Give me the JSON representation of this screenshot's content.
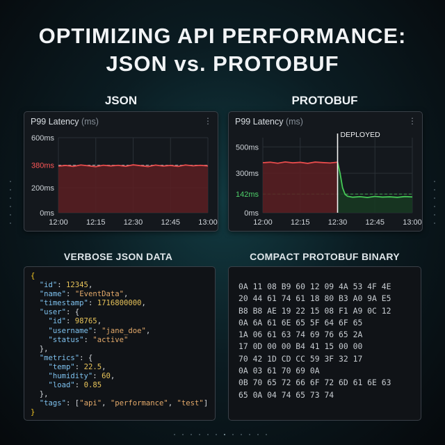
{
  "title_line1": "OPTIMIZING API PERFORMANCE:",
  "title_line2": "JSON vs. PROTOBUF",
  "left_heading": "JSON",
  "right_heading": "PROTOBUF",
  "code_heading_left": "VERBOSE JSON DATA",
  "code_heading_right": "COMPACT PROTOBUF BINARY",
  "colors": {
    "json_series": "#e84c4c",
    "protobuf_after": "#46c957",
    "accent_label_red": "#ff5757",
    "accent_label_green": "#4fd06a"
  },
  "chart_data": [
    {
      "type": "line",
      "title": "P99 Latency",
      "unit": "(ms)",
      "menu_icon": "kebab-menu-icon",
      "x_ticks": [
        "12:00",
        "12:15",
        "12:30",
        "12:45",
        "13:00"
      ],
      "y_ticks": [
        "600ms",
        "380ms",
        "200ms",
        "0ms"
      ],
      "ylim": [
        0,
        600
      ],
      "xlim": [
        0,
        60
      ],
      "reference_line": {
        "value": 380,
        "label": "380ms"
      },
      "grid": true,
      "series": [
        {
          "x": [
            0,
            3,
            6,
            9,
            12,
            15,
            18,
            21,
            24,
            27,
            30,
            33,
            36,
            39,
            42,
            45,
            48,
            51,
            54,
            57,
            60
          ],
          "y": [
            372,
            378,
            370,
            382,
            375,
            368,
            380,
            374,
            379,
            371,
            383,
            376,
            369,
            381,
            373,
            378,
            370,
            382,
            375,
            379,
            374
          ]
        }
      ]
    },
    {
      "type": "line",
      "title": "P99 Latency",
      "unit": "(ms)",
      "menu_icon": "kebab-menu-icon",
      "x_ticks": [
        "12:00",
        "12:15",
        "12:30",
        "12:45",
        "13:00"
      ],
      "y_ticks": [
        "500ms",
        "300ms",
        "142ms",
        "0ms"
      ],
      "ylim": [
        0,
        570
      ],
      "xlim": [
        0,
        60
      ],
      "reference_line": {
        "value": 142,
        "label": "142ms"
      },
      "event_marker": {
        "x": 30,
        "label": "DEPLOYED"
      },
      "grid": true,
      "series": [
        {
          "x": [
            0,
            3,
            6,
            9,
            12,
            15,
            18,
            21,
            24,
            27,
            30,
            31,
            32,
            33,
            34,
            36,
            39,
            42,
            45,
            48,
            51,
            54,
            57,
            60
          ],
          "y": [
            380,
            384,
            376,
            386,
            379,
            383,
            375,
            385,
            381,
            378,
            384,
            300,
            190,
            140,
            125,
            118,
            122,
            116,
            124,
            119,
            121,
            117,
            123,
            120
          ]
        }
      ]
    }
  ],
  "json_lines": [
    [
      [
        "b",
        "{"
      ]
    ],
    [
      [
        "p",
        "  "
      ],
      [
        "k",
        "\"id\""
      ],
      [
        "p",
        ": "
      ],
      [
        "n",
        "12345"
      ],
      [
        "p",
        ","
      ]
    ],
    [
      [
        "p",
        "  "
      ],
      [
        "k",
        "\"name\""
      ],
      [
        "p",
        ": "
      ],
      [
        "s",
        "\"EventData\""
      ],
      [
        "p",
        ","
      ]
    ],
    [
      [
        "p",
        "  "
      ],
      [
        "k",
        "\"timestamp\""
      ],
      [
        "p",
        ": "
      ],
      [
        "n",
        "1716800000"
      ],
      [
        "p",
        ","
      ]
    ],
    [
      [
        "p",
        "  "
      ],
      [
        "k",
        "\"user\""
      ],
      [
        "p",
        ": {"
      ]
    ],
    [
      [
        "p",
        "    "
      ],
      [
        "k",
        "\"id\""
      ],
      [
        "p",
        ": "
      ],
      [
        "n",
        "98765"
      ],
      [
        "p",
        ","
      ]
    ],
    [
      [
        "p",
        "    "
      ],
      [
        "k",
        "\"username\""
      ],
      [
        "p",
        ": "
      ],
      [
        "s",
        "\"jane_doe\""
      ],
      [
        "p",
        ","
      ]
    ],
    [
      [
        "p",
        "    "
      ],
      [
        "k",
        "\"status\""
      ],
      [
        "p",
        ": "
      ],
      [
        "s",
        "\"active\""
      ]
    ],
    [
      [
        "p",
        "  },"
      ]
    ],
    [
      [
        "p",
        "  "
      ],
      [
        "k",
        "\"metrics\""
      ],
      [
        "p",
        ": {"
      ]
    ],
    [
      [
        "p",
        "    "
      ],
      [
        "k",
        "\"temp\""
      ],
      [
        "p",
        ": "
      ],
      [
        "n",
        "22.5"
      ],
      [
        "p",
        ","
      ]
    ],
    [
      [
        "p",
        "    "
      ],
      [
        "k",
        "\"humidity\""
      ],
      [
        "p",
        ": "
      ],
      [
        "n",
        "60"
      ],
      [
        "p",
        ","
      ]
    ],
    [
      [
        "p",
        "    "
      ],
      [
        "k",
        "\"load\""
      ],
      [
        "p",
        ": "
      ],
      [
        "n",
        "0.85"
      ]
    ],
    [
      [
        "p",
        "  },"
      ]
    ],
    [
      [
        "p",
        "  "
      ],
      [
        "k",
        "\"tags\""
      ],
      [
        "p",
        ": ["
      ],
      [
        "s",
        "\"api\""
      ],
      [
        "p",
        ", "
      ],
      [
        "s",
        "\"performance\""
      ],
      [
        "p",
        ", "
      ],
      [
        "s",
        "\"test\""
      ],
      [
        "p",
        "]"
      ]
    ],
    [
      [
        "b",
        "}"
      ]
    ]
  ],
  "hex_lines": [
    "0A 11 08 B9 60 12 09 4A 53 4F 4E",
    "20 44 61 74 61 18 80 B3 A0 9A E5",
    "B8 B8 AE 19 22 15 08 F1 A9 0C 12",
    "0A 6A 61 6E 65 5F 64 6F 65",
    "1A 06 61 63 74 69 76 65 2A",
    "17 0D 00 00 B4 41 15 00 00",
    "70 42 1D CD CC 59 3F 32 17",
    "0A 03 61 70 69 0A",
    "0B 70 65 72 66 6F 72 6D 61 6E 63",
    "65 0A 04 74 65 73 74"
  ]
}
